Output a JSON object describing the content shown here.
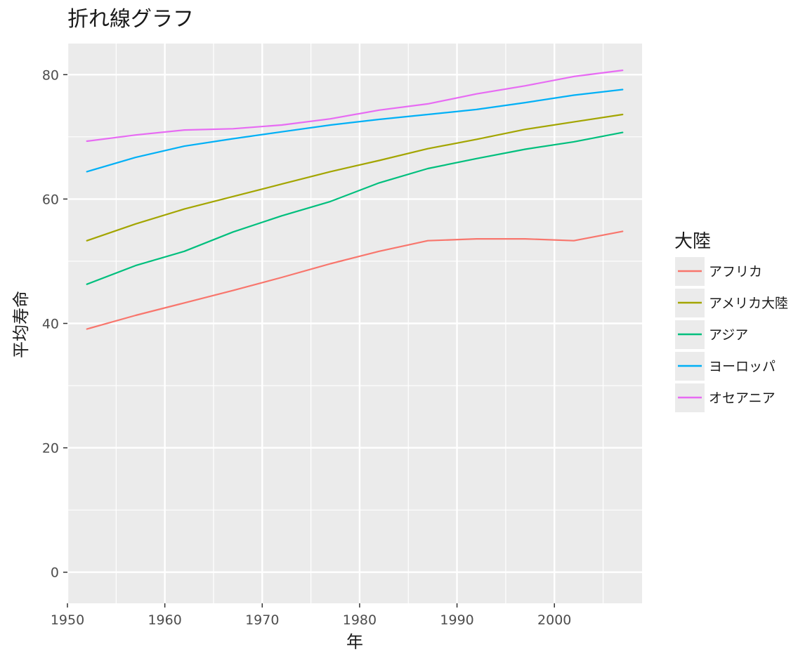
{
  "chart_data": {
    "type": "line",
    "title": "折れ線グラフ",
    "xlabel": "年",
    "ylabel": "平均寿命",
    "xlim": [
      1950,
      2009
    ],
    "ylim": [
      -5,
      85
    ],
    "xticks": [
      1950,
      1960,
      1970,
      1980,
      1990,
      2000
    ],
    "yticks": [
      0,
      20,
      40,
      60,
      80
    ],
    "grid": true,
    "legend": {
      "title": "大陸",
      "position": "right"
    },
    "x": [
      1952,
      1957,
      1962,
      1967,
      1972,
      1977,
      1982,
      1987,
      1992,
      1997,
      2002,
      2007
    ],
    "series": [
      {
        "name": "アフリカ",
        "color": "#F8766D",
        "values": [
          39.1,
          41.3,
          43.3,
          45.3,
          47.4,
          49.6,
          51.6,
          53.3,
          53.6,
          53.6,
          53.3,
          54.8
        ]
      },
      {
        "name": "アメリカ大陸",
        "color": "#A3A500",
        "values": [
          53.3,
          56.0,
          58.4,
          60.4,
          62.4,
          64.4,
          66.2,
          68.1,
          69.6,
          71.2,
          72.4,
          73.6
        ]
      },
      {
        "name": "アジア",
        "color": "#00BF7D",
        "values": [
          46.3,
          49.3,
          51.6,
          54.7,
          57.3,
          59.6,
          62.6,
          64.9,
          66.5,
          68.0,
          69.2,
          70.7
        ]
      },
      {
        "name": "ヨーロッパ",
        "color": "#00B0F6",
        "values": [
          64.4,
          66.7,
          68.5,
          69.7,
          70.8,
          71.9,
          72.8,
          73.6,
          74.4,
          75.5,
          76.7,
          77.6
        ]
      },
      {
        "name": "オセアニア",
        "color": "#E76BF3",
        "values": [
          69.3,
          70.3,
          71.1,
          71.3,
          71.9,
          72.9,
          74.3,
          75.3,
          76.9,
          78.2,
          79.7,
          80.7
        ]
      }
    ]
  }
}
